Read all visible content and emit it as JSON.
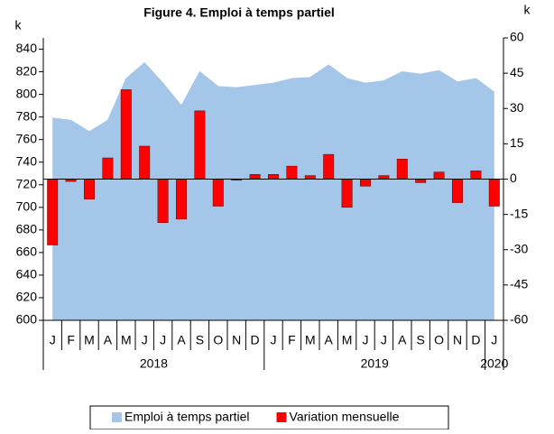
{
  "chart_data": {
    "type": "bar-area",
    "title": "Figure 4. Emploi à temps partiel",
    "y_label": "k",
    "y2_label": "k",
    "categories": [
      "J",
      "F",
      "M",
      "A",
      "M",
      "J",
      "J",
      "A",
      "S",
      "O",
      "N",
      "D",
      "J",
      "F",
      "M",
      "A",
      "M",
      "J",
      "J",
      "A",
      "S",
      "O",
      "N",
      "D",
      "J"
    ],
    "years": [
      "2018",
      "2018",
      "2018",
      "2018",
      "2018",
      "2018",
      "2018",
      "2018",
      "2018",
      "2018",
      "2018",
      "2018",
      "2019",
      "2019",
      "2019",
      "2019",
      "2019",
      "2019",
      "2019",
      "2019",
      "2019",
      "2019",
      "2019",
      "2019",
      "2020"
    ],
    "series": [
      {
        "name": "Emploi à temps partiel",
        "type": "area",
        "color": "#a3c6e9",
        "values": [
          779,
          777,
          767,
          777,
          814,
          828,
          810,
          790,
          820,
          807,
          806,
          808,
          810,
          814,
          815,
          826,
          814,
          810,
          812,
          820,
          818,
          821,
          811,
          814,
          802
        ]
      },
      {
        "name": "Variation mensuelle",
        "type": "bar",
        "axis": "y2",
        "color": "#ff0000",
        "values": [
          -28,
          -1,
          -8.5,
          9,
          38,
          14,
          -18.5,
          -17,
          29,
          -11.5,
          -0.5,
          2,
          2,
          5.5,
          1.5,
          10.5,
          -12,
          -3,
          1.5,
          8.5,
          -1.5,
          3,
          -10,
          3.5,
          -11.5
        ]
      }
    ],
    "ylim": [
      600,
      850
    ],
    "yticks": [
      600,
      620,
      640,
      660,
      680,
      700,
      720,
      740,
      760,
      780,
      800,
      820,
      840
    ],
    "y2lim": [
      -60,
      60
    ],
    "y2ticks": [
      -60,
      -45,
      -30,
      -15,
      0,
      15,
      30,
      45,
      60
    ],
    "grid": false,
    "legend": "bottom"
  }
}
